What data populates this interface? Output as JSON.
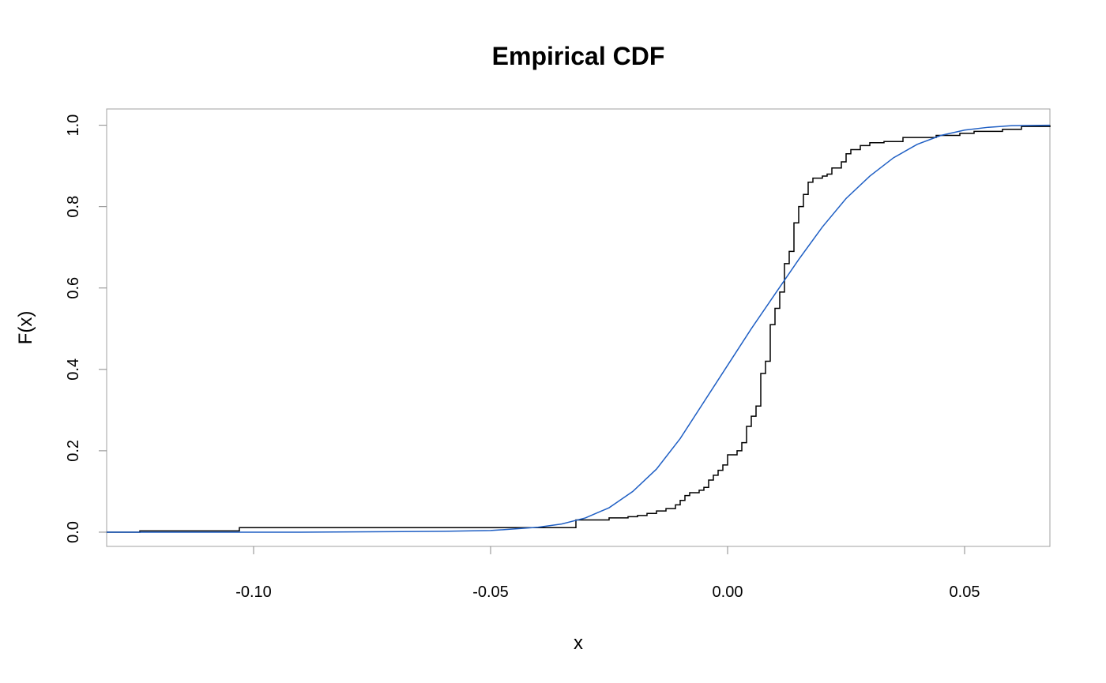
{
  "chart_data": {
    "type": "line",
    "title": "Empirical CDF",
    "xlabel": "x",
    "ylabel": "F(x)",
    "xlim": [
      -0.131,
      0.068
    ],
    "ylim": [
      -0.035,
      1.04
    ],
    "grid": false,
    "x_ticks": [
      -0.1,
      -0.05,
      0.0,
      0.05
    ],
    "x_tick_labels": [
      "-0.10",
      "-0.05",
      "0.00",
      "0.05"
    ],
    "y_ticks": [
      0.0,
      0.2,
      0.4,
      0.6,
      0.8,
      1.0
    ],
    "y_tick_labels": [
      "0.0",
      "0.2",
      "0.4",
      "0.6",
      "0.8",
      "1.0"
    ],
    "series": [
      {
        "kind": "step",
        "color": "#000000",
        "points": [
          [
            -0.131,
            0.0
          ],
          [
            -0.124,
            0.003
          ],
          [
            -0.103,
            0.011
          ],
          [
            -0.032,
            0.03
          ],
          [
            -0.025,
            0.035
          ],
          [
            -0.021,
            0.038
          ],
          [
            -0.019,
            0.041
          ],
          [
            -0.017,
            0.046
          ],
          [
            -0.015,
            0.052
          ],
          [
            -0.013,
            0.058
          ],
          [
            -0.011,
            0.067
          ],
          [
            -0.01,
            0.078
          ],
          [
            -0.009,
            0.09
          ],
          [
            -0.008,
            0.097
          ],
          [
            -0.006,
            0.103
          ],
          [
            -0.005,
            0.11
          ],
          [
            -0.004,
            0.128
          ],
          [
            -0.003,
            0.14
          ],
          [
            -0.002,
            0.152
          ],
          [
            -0.001,
            0.165
          ],
          [
            0.0,
            0.19
          ],
          [
            0.002,
            0.2
          ],
          [
            0.003,
            0.22
          ],
          [
            0.004,
            0.26
          ],
          [
            0.005,
            0.285
          ],
          [
            0.006,
            0.31
          ],
          [
            0.007,
            0.35
          ],
          [
            0.007,
            0.39
          ],
          [
            0.008,
            0.42
          ],
          [
            0.009,
            0.46
          ],
          [
            0.009,
            0.51
          ],
          [
            0.01,
            0.55
          ],
          [
            0.011,
            0.59
          ],
          [
            0.012,
            0.63
          ],
          [
            0.012,
            0.66
          ],
          [
            0.013,
            0.69
          ],
          [
            0.014,
            0.73
          ],
          [
            0.014,
            0.76
          ],
          [
            0.015,
            0.8
          ],
          [
            0.016,
            0.83
          ],
          [
            0.017,
            0.86
          ],
          [
            0.018,
            0.87
          ],
          [
            0.02,
            0.875
          ],
          [
            0.021,
            0.88
          ],
          [
            0.022,
            0.895
          ],
          [
            0.024,
            0.91
          ],
          [
            0.025,
            0.93
          ],
          [
            0.026,
            0.94
          ],
          [
            0.028,
            0.95
          ],
          [
            0.03,
            0.957
          ],
          [
            0.033,
            0.96
          ],
          [
            0.037,
            0.97
          ],
          [
            0.044,
            0.975
          ],
          [
            0.049,
            0.98
          ],
          [
            0.052,
            0.985
          ],
          [
            0.058,
            0.99
          ],
          [
            0.062,
            0.997
          ],
          [
            0.068,
            1.0
          ]
        ]
      },
      {
        "kind": "line",
        "color": "#1f5fc4",
        "points": [
          [
            -0.131,
            0.0
          ],
          [
            -0.09,
            0.0
          ],
          [
            -0.06,
            0.002
          ],
          [
            -0.05,
            0.004
          ],
          [
            -0.04,
            0.012
          ],
          [
            -0.035,
            0.02
          ],
          [
            -0.03,
            0.035
          ],
          [
            -0.025,
            0.06
          ],
          [
            -0.02,
            0.1
          ],
          [
            -0.015,
            0.155
          ],
          [
            -0.01,
            0.23
          ],
          [
            -0.005,
            0.32
          ],
          [
            0.0,
            0.41
          ],
          [
            0.005,
            0.5
          ],
          [
            0.01,
            0.585
          ],
          [
            0.015,
            0.67
          ],
          [
            0.02,
            0.75
          ],
          [
            0.025,
            0.82
          ],
          [
            0.03,
            0.875
          ],
          [
            0.035,
            0.92
          ],
          [
            0.04,
            0.953
          ],
          [
            0.045,
            0.975
          ],
          [
            0.05,
            0.988
          ],
          [
            0.055,
            0.995
          ],
          [
            0.06,
            0.999
          ],
          [
            0.068,
            1.0
          ]
        ]
      }
    ]
  }
}
